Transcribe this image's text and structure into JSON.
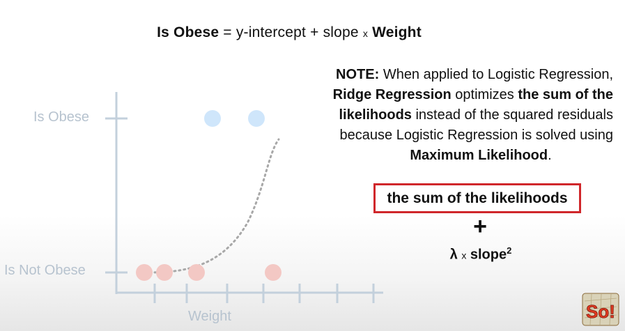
{
  "equation": {
    "lhs": "Is Obese",
    "equals": "=",
    "rhs": "y-intercept + slope",
    "times": "x",
    "var": "Weight"
  },
  "note": {
    "line1_bold": "NOTE:",
    "line1_rest": "When applied to Logistic Regression,",
    "line2_bold_a": "Ridge Regression",
    "line2_mid": "optimizes",
    "line2_bold_b": "the sum of the",
    "line3_bold": "likelihoods",
    "line3_rest": "instead of the squared residuals",
    "line4": "because Logistic Regression is solved using",
    "line5_bold": "Maximum Likelihood",
    "line5_end": "."
  },
  "boxed_text": "the sum of the likelihoods",
  "plus_symbol": "+",
  "penalty": {
    "lambda": "λ",
    "times": "x",
    "slope": "slope",
    "exponent": "2"
  },
  "plot": {
    "y_label_top": "Is Obese",
    "y_label_bottom": "Is Not Obese",
    "x_label": "Weight",
    "colors": {
      "axis": "#c3d0dc",
      "obese_point": "#cfe6fb",
      "not_obese_point": "#f3c8c4",
      "curve": "#a8a8a8"
    }
  },
  "colors": {
    "box_border": "#d0272b"
  },
  "logo_text": "So!"
}
